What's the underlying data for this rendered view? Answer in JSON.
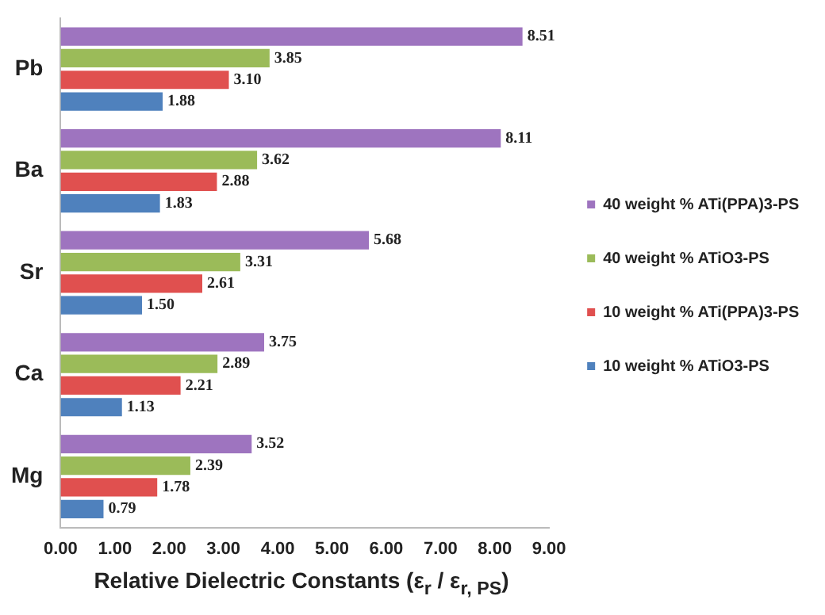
{
  "chart_data": {
    "type": "bar",
    "orientation": "horizontal",
    "categories": [
      "Pb",
      "Ba",
      "Sr",
      "Ca",
      "Mg"
    ],
    "series": [
      {
        "name": "40 weight % ATi(PPA)3-PS",
        "color": "#9e74bf",
        "values": [
          8.51,
          8.11,
          5.68,
          3.75,
          3.52
        ],
        "value_labels": [
          "8.51",
          "8.11",
          "5.68",
          "3.75",
          "3.52"
        ]
      },
      {
        "name": "40 weight % ATiO3-PS",
        "color": "#9bbb59",
        "values": [
          3.85,
          3.62,
          3.31,
          2.89,
          2.39
        ],
        "value_labels": [
          "3.85",
          "3.62",
          "3.31",
          "2.89",
          "2.39"
        ]
      },
      {
        "name": "10 weight % ATi(PPA)3-PS",
        "color": "#e0504f",
        "values": [
          3.1,
          2.88,
          2.61,
          2.21,
          1.78
        ],
        "value_labels": [
          "3.10",
          "2.88",
          "2.61",
          "2.21",
          "1.78"
        ]
      },
      {
        "name": "10 weight % ATiO3-PS",
        "color": "#4f81bd",
        "values": [
          1.88,
          1.83,
          1.5,
          1.13,
          0.79
        ],
        "value_labels": [
          "1.88",
          "1.83",
          "1.50",
          "1.13",
          "0.79"
        ]
      }
    ],
    "xlim": [
      0,
      9
    ],
    "xticks": [
      {
        "value": 0,
        "label": "0.00"
      },
      {
        "value": 1,
        "label": "1.00"
      },
      {
        "value": 2,
        "label": "2.00"
      },
      {
        "value": 3,
        "label": "3.00"
      },
      {
        "value": 4,
        "label": "4.00"
      },
      {
        "value": 5,
        "label": "5.00"
      },
      {
        "value": 6,
        "label": "6.00"
      },
      {
        "value": 7,
        "label": "7.00"
      },
      {
        "value": 8,
        "label": "8.00"
      },
      {
        "value": 9,
        "label": "9.00"
      }
    ],
    "xlabel": "Relative Dielectric Constants (ε$_{r}$ / ε$_{r, PS}$)",
    "legend": "right",
    "grid": false
  }
}
